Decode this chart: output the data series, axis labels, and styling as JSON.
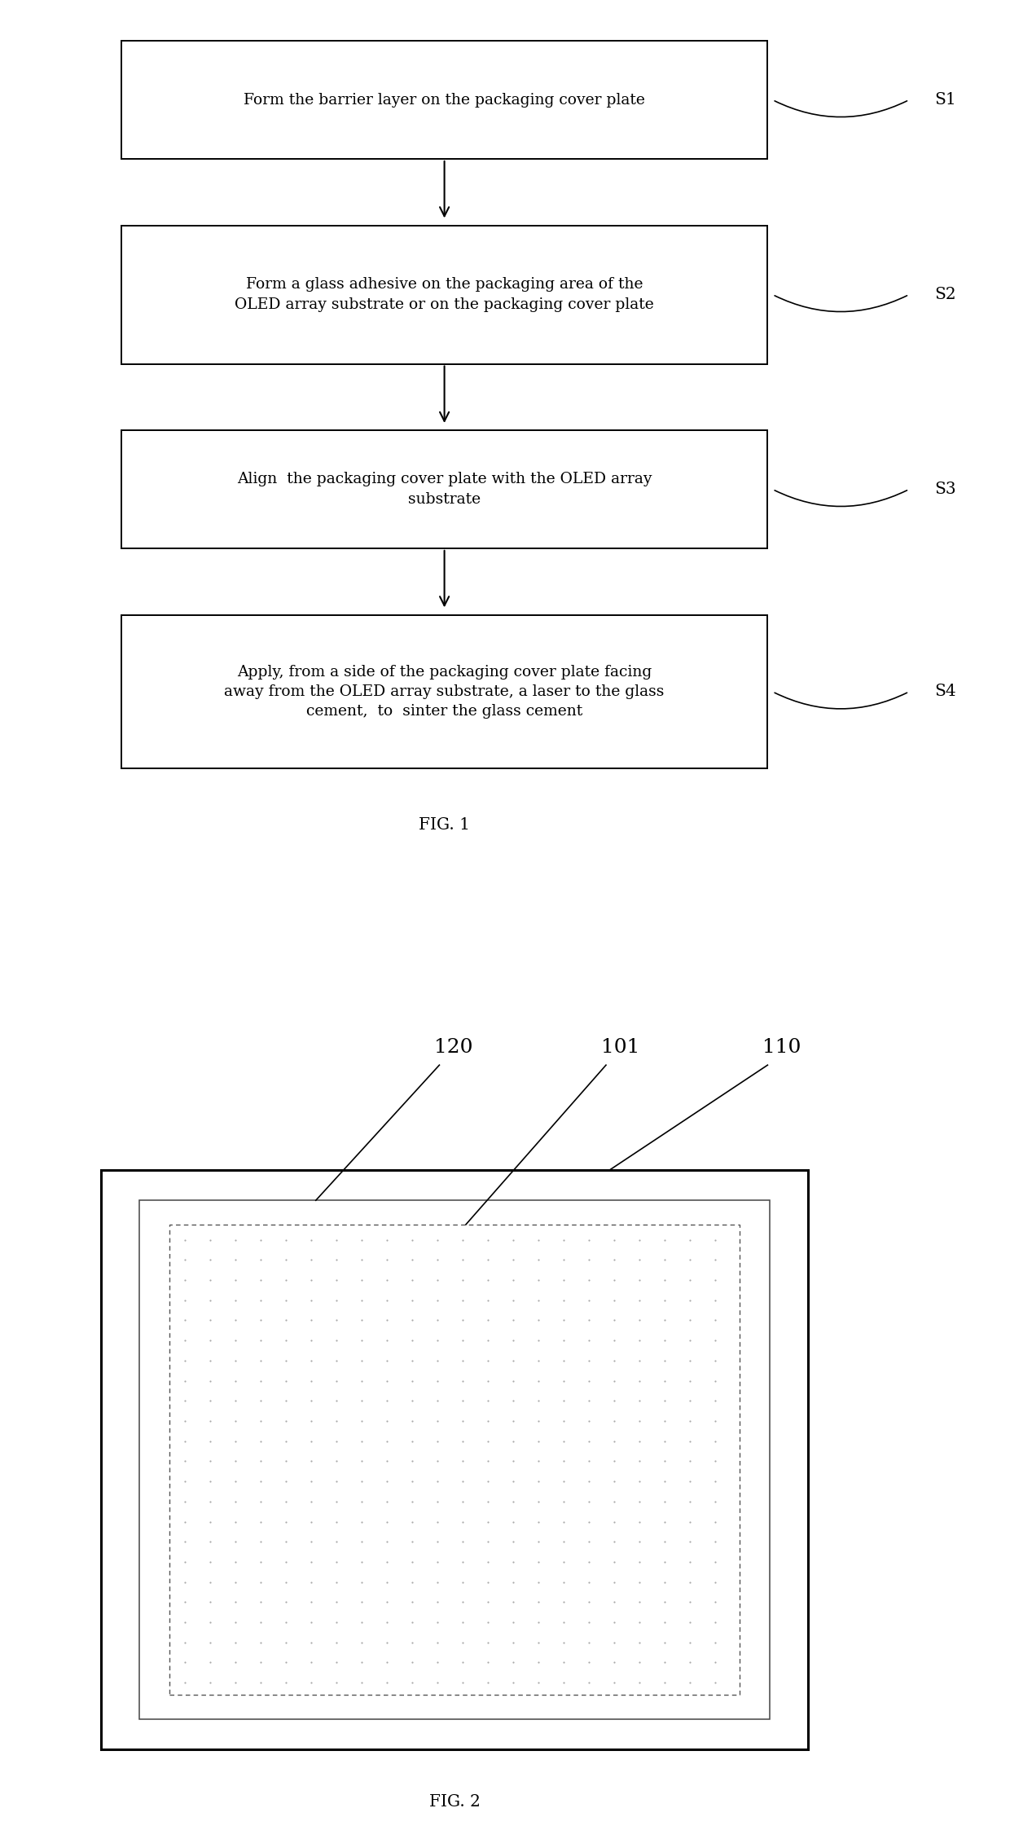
{
  "fig1_title": "FIG. 1",
  "fig2_title": "FIG. 2",
  "background_color": "#ffffff",
  "box_edge_color": "#000000",
  "text_color": "#000000",
  "s1_text": "Form the barrier layer on the packaging cover plate",
  "s2_text": "Form a glass adhesive on the packaging area of the\nOLED array substrate or on the packaging cover plate",
  "s3_text": "Align  the packaging cover plate with the OLED array\nsubstrate",
  "s4_text": "Apply, from a side of the packaging cover plate facing\naway from the OLED array substrate, a laser to the glass\ncement,  to  sinter the glass cement",
  "step_labels": [
    "S1",
    "S2",
    "S3",
    "S4"
  ],
  "label_120": "120",
  "label_101": "101",
  "label_110": "110"
}
